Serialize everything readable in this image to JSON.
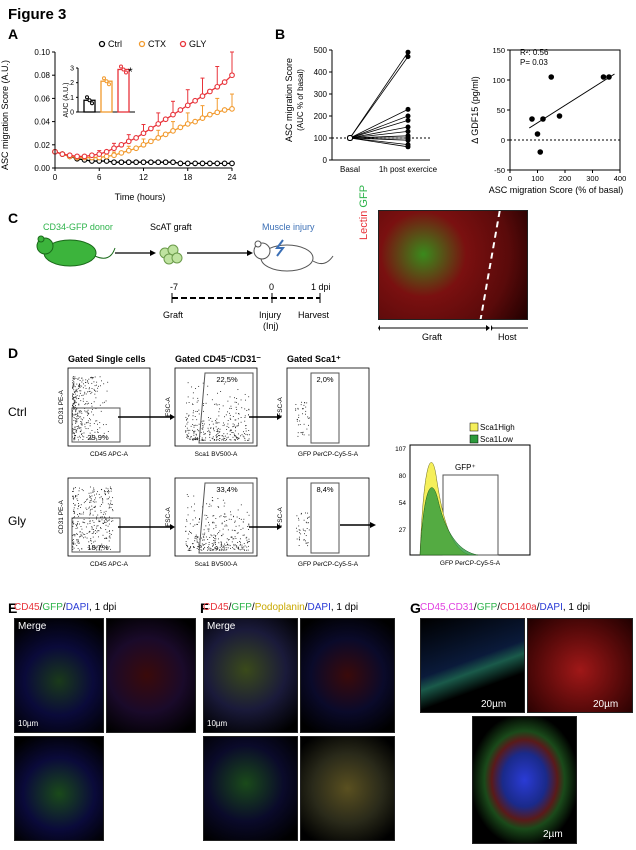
{
  "figure_title": "Figure 3",
  "panels": {
    "A": {
      "letter": "A",
      "ylabel": "ASC migration Score (A.U.)",
      "xlabel": "Time (hours)",
      "legend": [
        "Ctrl",
        "CTX",
        "GLY"
      ],
      "yticks": [
        "0.00",
        "0.02",
        "0.04",
        "0.06",
        "0.08",
        "0.10"
      ],
      "xticks": [
        "0",
        "6",
        "12",
        "18",
        "24"
      ],
      "inset": {
        "ylabel": "AUC (A.U.)",
        "yticks": [
          "0",
          "1",
          "2",
          "3"
        ],
        "star": "*"
      }
    },
    "B": {
      "letter": "B",
      "left": {
        "ylabel": "ASC migration Score",
        "ylabel2": "(AUC % of basal)",
        "yticks": [
          "0",
          "100",
          "200",
          "300",
          "400",
          "500"
        ],
        "xticks": [
          "Basal",
          "1h post exercice"
        ]
      },
      "right": {
        "ylabel": "Δ GDF15 (pg/ml)",
        "xlabel": "ASC migration Score (% of basal)",
        "yticks": [
          "-50",
          "0",
          "50",
          "100",
          "150"
        ],
        "xticks": [
          "0",
          "100",
          "200",
          "300",
          "400"
        ],
        "r2": "R²: 0.56",
        "p": "P= 0.03"
      }
    },
    "C": {
      "letter": "C",
      "donor": "CD34-GFP donor",
      "graft_label": "ScAT graft",
      "injury": "Muscle injury",
      "timeline": [
        "-7",
        "0",
        "1 dpi"
      ],
      "events": [
        "Graft",
        "Injury",
        "(Inj)",
        "Harvest"
      ],
      "micro_labels": [
        "Lectin",
        "GFP"
      ],
      "micro_regions": [
        "Graft",
        "Host"
      ]
    },
    "D": {
      "letter": "D",
      "col_titles": [
        "Gated Single cells",
        "Gated CD45⁻/CD31⁻",
        "Gated Sca1⁺"
      ],
      "rows": [
        "Ctrl",
        "Gly"
      ],
      "ctrl_pct": [
        "29,9%",
        "22,5%",
        "2,0%"
      ],
      "gly_pct": [
        "18,7%",
        "33,4%",
        "8,4%"
      ],
      "axes": {
        "x1": "CD45 APC-A",
        "y1": "CD31 PE-A",
        "x2": "Sca1 BV500-A",
        "y2": "FSC-A",
        "x3": "GFP PerCP-Cy5-5-A",
        "y3": "FSC-A"
      },
      "histogram": {
        "gate": "GFP⁺",
        "yticks": [
          "107",
          "80",
          "54",
          "27"
        ],
        "xaxis": "GFP PerCP-Cy5-5-A",
        "legend": [
          "Sca1High",
          "Sca1Low"
        ]
      }
    },
    "E": {
      "letter": "E",
      "title_parts": [
        "CD45",
        "/",
        "GFP",
        "/",
        "DAPI",
        ", 1 dpi"
      ],
      "merge": "Merge",
      "scale": "10µm"
    },
    "F": {
      "letter": "F",
      "title_parts": [
        "CD45",
        "/",
        "GFP",
        "/",
        "Podoplanin",
        "/",
        "DAPI",
        ", 1 dpi"
      ],
      "merge": "Merge",
      "scale": "10µm"
    },
    "G": {
      "letter": "G",
      "title_parts": [
        "CD45,CD31",
        "/",
        "GFP",
        "/",
        "CD140a",
        "/",
        "DAPI",
        ", 1 dpi"
      ],
      "scales": [
        "20µm",
        "20µm",
        "2µm"
      ]
    }
  },
  "colors": {
    "ctrl": "#000000",
    "ctx": "#f29a2e",
    "gly": "#e8333a",
    "gfp": "#2db34a",
    "red": "#e8333a",
    "blue": "#2a3bd6",
    "yellow": "#e0c94a",
    "magenta": "#e040e0"
  },
  "chart_data": [
    {
      "type": "line",
      "panel": "A",
      "xlabel": "Time (hours)",
      "ylabel": "ASC migration Score (A.U.)",
      "xlim": [
        0,
        24
      ],
      "ylim": [
        0,
        0.1
      ],
      "x": [
        0,
        1,
        2,
        3,
        4,
        5,
        6,
        7,
        8,
        9,
        10,
        11,
        12,
        13,
        14,
        15,
        16,
        17,
        18,
        19,
        20,
        21,
        22,
        23,
        24
      ],
      "series": [
        {
          "name": "Ctrl",
          "values": [
            0.014,
            0.012,
            0.01,
            0.008,
            0.007,
            0.006,
            0.006,
            0.006,
            0.005,
            0.005,
            0.005,
            0.005,
            0.005,
            0.005,
            0.005,
            0.005,
            0.005,
            0.004,
            0.004,
            0.004,
            0.004,
            0.004,
            0.004,
            0.004,
            0.004
          ]
        },
        {
          "name": "CTX",
          "values": [
            0.014,
            0.012,
            0.01,
            0.009,
            0.009,
            0.009,
            0.009,
            0.01,
            0.011,
            0.013,
            0.015,
            0.017,
            0.02,
            0.023,
            0.026,
            0.029,
            0.032,
            0.035,
            0.038,
            0.04,
            0.043,
            0.046,
            0.048,
            0.05,
            0.051
          ]
        },
        {
          "name": "GLY",
          "values": [
            0.014,
            0.012,
            0.011,
            0.01,
            0.01,
            0.011,
            0.012,
            0.014,
            0.017,
            0.02,
            0.023,
            0.026,
            0.03,
            0.034,
            0.038,
            0.042,
            0.046,
            0.05,
            0.054,
            0.058,
            0.062,
            0.066,
            0.07,
            0.074,
            0.08
          ]
        }
      ]
    },
    {
      "type": "bar",
      "panel": "A-inset",
      "categories": [
        "Ctrl",
        "CTX",
        "GLY"
      ],
      "values": [
        0.8,
        2.1,
        2.9
      ],
      "ylim": [
        0,
        3
      ]
    },
    {
      "type": "line",
      "panel": "B-left",
      "categories": [
        "Basal",
        "1h post exercice"
      ],
      "pairs": [
        [
          100,
          490
        ],
        [
          100,
          470
        ],
        [
          100,
          230
        ],
        [
          100,
          200
        ],
        [
          100,
          180
        ],
        [
          100,
          150
        ],
        [
          100,
          130
        ],
        [
          100,
          110
        ],
        [
          100,
          100
        ],
        [
          100,
          90
        ],
        [
          100,
          70
        ],
        [
          100,
          60
        ]
      ],
      "ylim": [
        0,
        500
      ]
    },
    {
      "type": "scatter",
      "panel": "B-right",
      "xlabel": "ASC migration Score (% of basal)",
      "ylabel": "Δ GDF15 (pg/ml)",
      "xlim": [
        0,
        400
      ],
      "ylim": [
        -50,
        150
      ],
      "points": [
        [
          80,
          35
        ],
        [
          100,
          10
        ],
        [
          110,
          -20
        ],
        [
          120,
          35
        ],
        [
          150,
          105
        ],
        [
          180,
          40
        ],
        [
          340,
          105
        ],
        [
          360,
          105
        ]
      ]
    }
  ]
}
